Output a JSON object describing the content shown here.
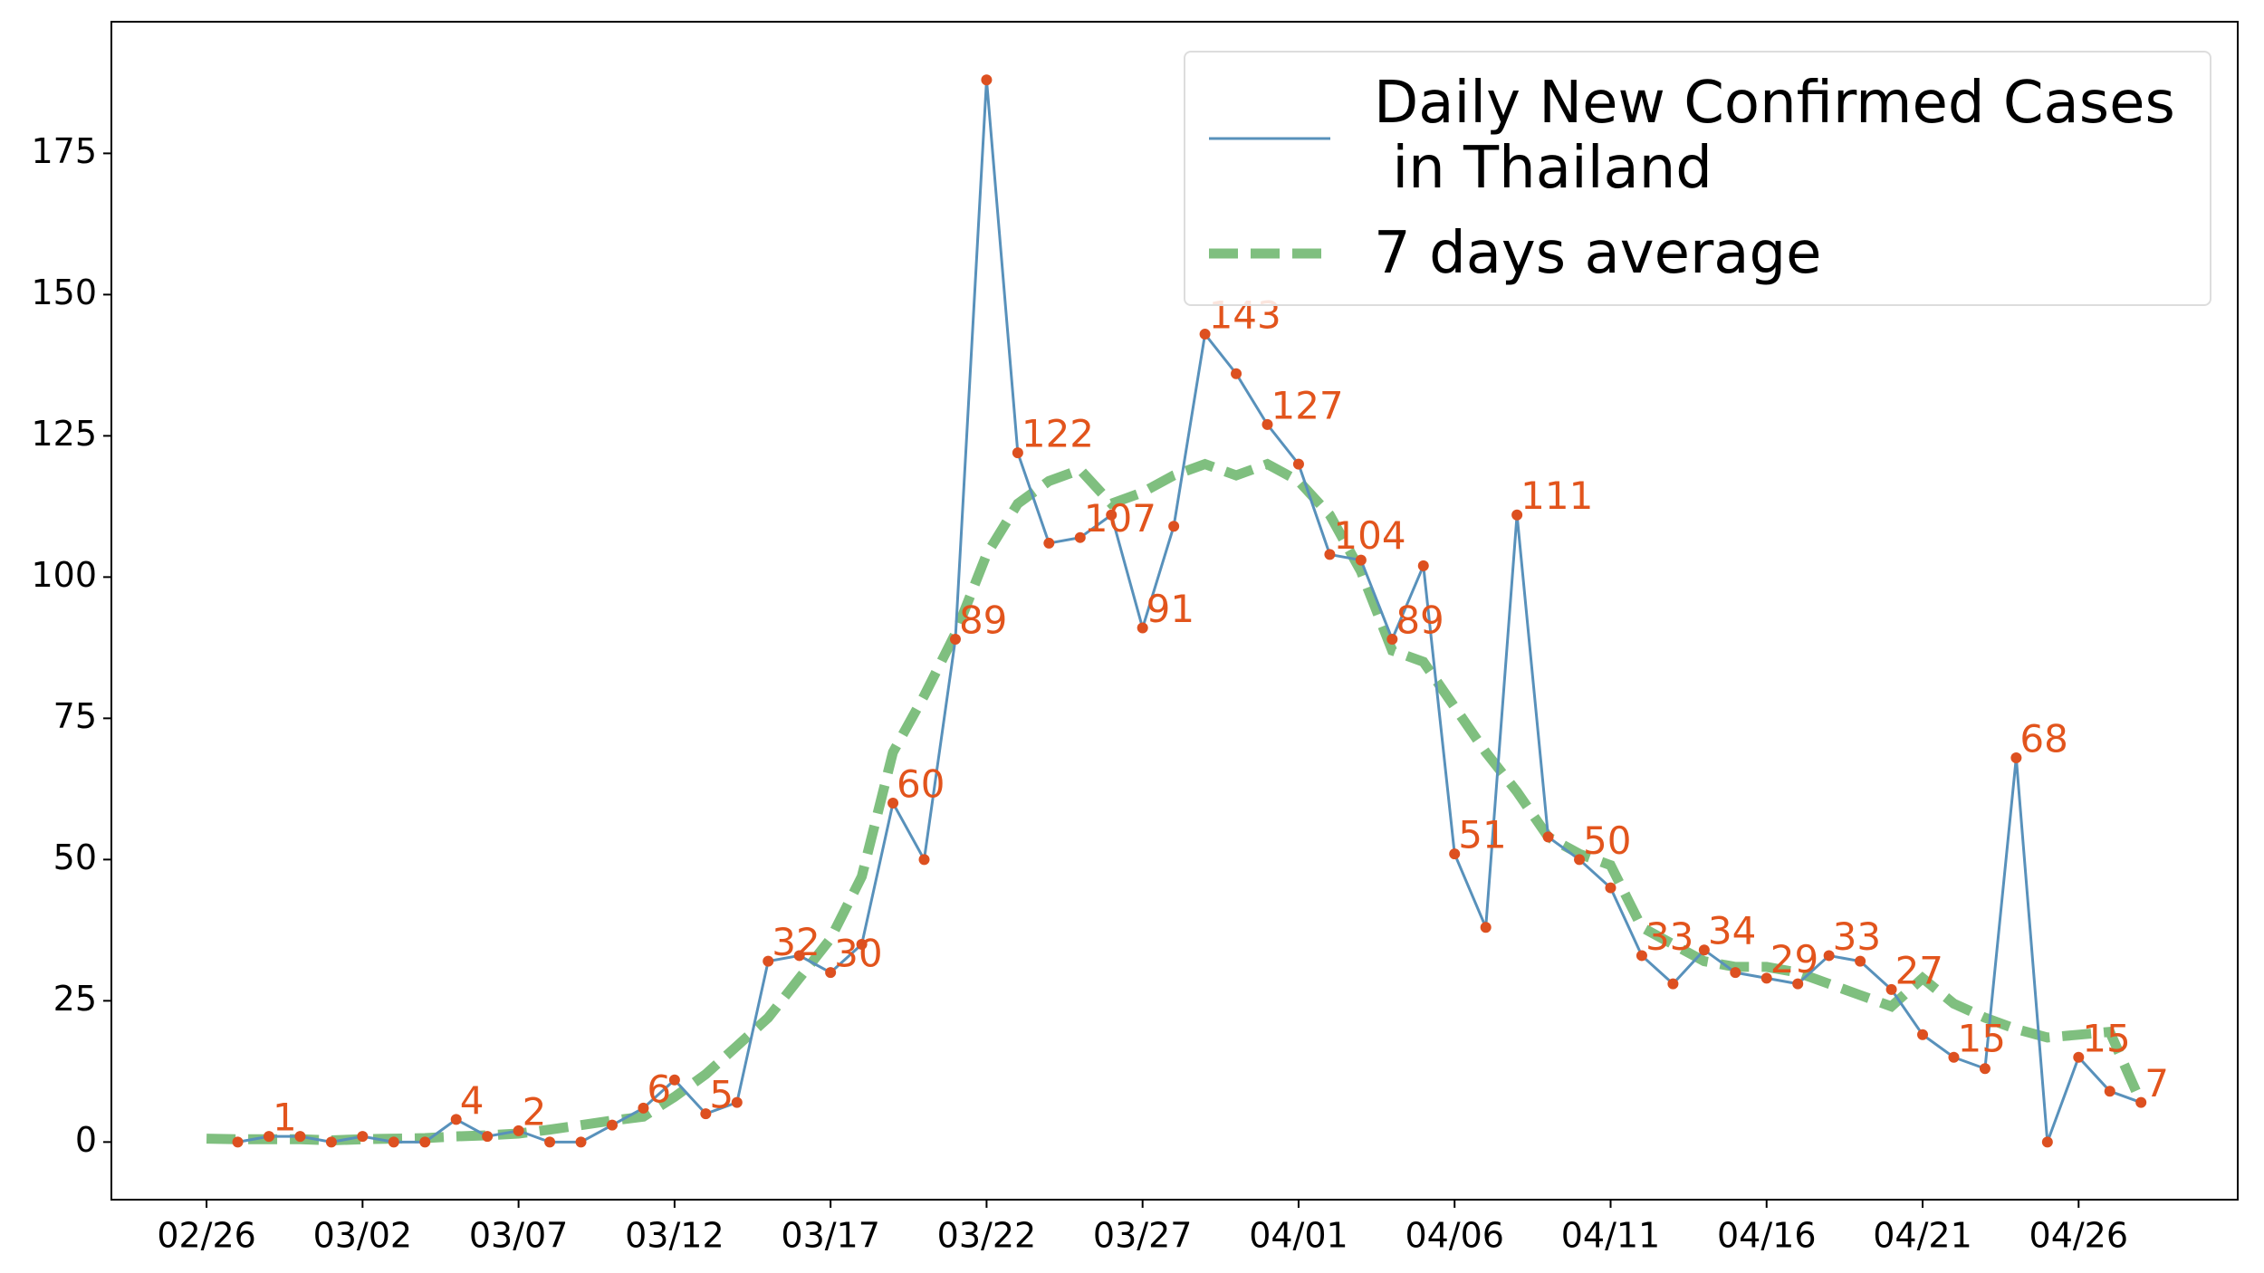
{
  "chart_data": {
    "type": "line",
    "x": [
      "02/26",
      "02/27",
      "02/28",
      "02/29",
      "03/01",
      "03/02",
      "03/03",
      "03/04",
      "03/05",
      "03/06",
      "03/07",
      "03/08",
      "03/09",
      "03/10",
      "03/11",
      "03/12",
      "03/13",
      "03/14",
      "03/15",
      "03/16",
      "03/17",
      "03/18",
      "03/19",
      "03/20",
      "03/21",
      "03/22",
      "03/23",
      "03/24",
      "03/25",
      "03/26",
      "03/27",
      "03/28",
      "03/29",
      "03/30",
      "03/31",
      "04/01",
      "04/02",
      "04/03",
      "04/04",
      "04/05",
      "04/06",
      "04/07",
      "04/08",
      "04/09",
      "04/10",
      "04/11",
      "04/12",
      "04/13",
      "04/14",
      "04/15",
      "04/16",
      "04/17",
      "04/18",
      "04/19",
      "04/20",
      "04/21",
      "04/22",
      "04/23",
      "04/24",
      "04/25",
      "04/26",
      "04/27",
      "04/28"
    ],
    "series": [
      {
        "name": "Daily New Confirmed Cases\n in Thailand",
        "color": "#5891bb",
        "marker_color": "#dd5020",
        "values": [
          null,
          0,
          1,
          1,
          0,
          1,
          0,
          0,
          4,
          1,
          2,
          0,
          0,
          3,
          6,
          11,
          5,
          7,
          32,
          33,
          30,
          35,
          60,
          50,
          89,
          188,
          122,
          106,
          107,
          111,
          91,
          109,
          143,
          136,
          127,
          120,
          104,
          103,
          89,
          102,
          51,
          38,
          111,
          54,
          50,
          45,
          33,
          28,
          34,
          30,
          29,
          28,
          33,
          32,
          27,
          19,
          15,
          13,
          68,
          0,
          15,
          9,
          7
        ],
        "value_labels": [
          null,
          null,
          "1",
          null,
          null,
          null,
          null,
          null,
          "4",
          null,
          "2",
          null,
          null,
          null,
          "6",
          null,
          "5",
          null,
          "32",
          null,
          "30",
          null,
          "60",
          null,
          "89",
          null,
          "122",
          null,
          "107",
          null,
          "91",
          null,
          "143",
          null,
          "127",
          null,
          "104",
          null,
          "89",
          null,
          "51",
          null,
          "111",
          null,
          "50",
          null,
          "33",
          null,
          "34",
          null,
          "29",
          null,
          "33",
          null,
          "27",
          null,
          "15",
          null,
          "68",
          null,
          "15",
          null,
          "7"
        ]
      },
      {
        "name": "7 days average",
        "color": "#7fbf7f",
        "dashed": true,
        "values": [
          0.6,
          0.5,
          0.5,
          0.5,
          0.3,
          0.5,
          0.6,
          0.7,
          1,
          1.2,
          1.5,
          2.2,
          3,
          3.8,
          4.5,
          8,
          12,
          17,
          22,
          29,
          36,
          47,
          69,
          79,
          90,
          104,
          113,
          117,
          119,
          113,
          115,
          118,
          120,
          118,
          120,
          117,
          111,
          101,
          87,
          85,
          77,
          69,
          62,
          54,
          51,
          49,
          38,
          35,
          32,
          31,
          31,
          30,
          28,
          26,
          24,
          29,
          24.5,
          22,
          20,
          18.5,
          19,
          19.5,
          7
        ]
      }
    ],
    "xticks": [
      "02/26",
      "03/02",
      "03/07",
      "03/12",
      "03/17",
      "03/22",
      "03/27",
      "04/01",
      "04/06",
      "04/11",
      "04/16",
      "04/21",
      "04/26"
    ],
    "xlim": [
      -3.05,
      65.1
    ],
    "ylim": [
      -10.2,
      198.3
    ],
    "yticks": [
      0,
      25,
      50,
      75,
      100,
      125,
      150,
      175
    ],
    "legend": "upper right"
  }
}
